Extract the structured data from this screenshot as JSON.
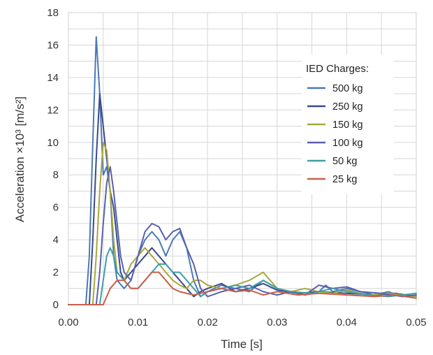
{
  "chart_data": {
    "type": "line",
    "title": "",
    "xlabel": "Time [s]",
    "ylabel": "Acceleration ×10³ [m/s²]",
    "xlim": [
      0,
      0.05
    ],
    "ylim": [
      0,
      18
    ],
    "x_ticks": [
      "0.00",
      "0.01",
      "0.02",
      "0.03",
      "0.04",
      "0.05"
    ],
    "y_ticks": [
      "0",
      "2",
      "4",
      "6",
      "8",
      "10",
      "12",
      "14",
      "16",
      "18"
    ],
    "grid": true,
    "legend": {
      "title": "IED Charges:",
      "position": "right"
    },
    "series": [
      {
        "name": "500 kg",
        "color": "#4a7ab5",
        "points": [
          [
            0,
            0
          ],
          [
            0.0025,
            0
          ],
          [
            0.003,
            3
          ],
          [
            0.0035,
            10
          ],
          [
            0.004,
            16.5
          ],
          [
            0.0045,
            13
          ],
          [
            0.005,
            8
          ],
          [
            0.0055,
            8.5
          ],
          [
            0.006,
            7
          ],
          [
            0.0065,
            3
          ],
          [
            0.007,
            1.5
          ],
          [
            0.008,
            1
          ],
          [
            0.009,
            1.5
          ],
          [
            0.01,
            3
          ],
          [
            0.011,
            4
          ],
          [
            0.012,
            4.5
          ],
          [
            0.013,
            4
          ],
          [
            0.014,
            3
          ],
          [
            0.015,
            4
          ],
          [
            0.016,
            4.5
          ],
          [
            0.017,
            3.5
          ],
          [
            0.018,
            1.5
          ],
          [
            0.019,
            0.5
          ],
          [
            0.02,
            0.8
          ],
          [
            0.022,
            1.2
          ],
          [
            0.024,
            1
          ],
          [
            0.026,
            0.8
          ],
          [
            0.028,
            1.5
          ],
          [
            0.03,
            1
          ],
          [
            0.032,
            0.8
          ],
          [
            0.034,
            0.6
          ],
          [
            0.036,
            0.8
          ],
          [
            0.037,
            1.2
          ],
          [
            0.038,
            0.8
          ],
          [
            0.04,
            1
          ],
          [
            0.042,
            0.8
          ],
          [
            0.044,
            0.6
          ],
          [
            0.046,
            0.8
          ],
          [
            0.048,
            0.5
          ],
          [
            0.05,
            0.6
          ]
        ]
      },
      {
        "name": "250 kg",
        "color": "#3a4a8a",
        "points": [
          [
            0,
            0
          ],
          [
            0.003,
            0
          ],
          [
            0.0035,
            4
          ],
          [
            0.004,
            9
          ],
          [
            0.0045,
            13
          ],
          [
            0.005,
            11
          ],
          [
            0.0055,
            9
          ],
          [
            0.006,
            7
          ],
          [
            0.0065,
            6
          ],
          [
            0.007,
            4
          ],
          [
            0.0075,
            2
          ],
          [
            0.008,
            1.5
          ],
          [
            0.009,
            2
          ],
          [
            0.01,
            2.5
          ],
          [
            0.011,
            3
          ],
          [
            0.012,
            3.5
          ],
          [
            0.013,
            3
          ],
          [
            0.014,
            2.5
          ],
          [
            0.015,
            2
          ],
          [
            0.016,
            1.5
          ],
          [
            0.017,
            1
          ],
          [
            0.018,
            0.5
          ],
          [
            0.019,
            0.8
          ],
          [
            0.02,
            1
          ],
          [
            0.022,
            1.3
          ],
          [
            0.024,
            0.8
          ],
          [
            0.026,
            1
          ],
          [
            0.028,
            1.3
          ],
          [
            0.03,
            0.9
          ],
          [
            0.033,
            0.7
          ],
          [
            0.036,
            0.8
          ],
          [
            0.04,
            0.7
          ],
          [
            0.044,
            0.6
          ],
          [
            0.047,
            0.7
          ],
          [
            0.05,
            0.5
          ]
        ]
      },
      {
        "name": "150 kg",
        "color": "#a6a83c",
        "points": [
          [
            0,
            0
          ],
          [
            0.0035,
            0
          ],
          [
            0.004,
            3
          ],
          [
            0.0045,
            7
          ],
          [
            0.005,
            10
          ],
          [
            0.0055,
            9.5
          ],
          [
            0.006,
            7
          ],
          [
            0.0065,
            4
          ],
          [
            0.007,
            2
          ],
          [
            0.008,
            1.5
          ],
          [
            0.009,
            2.5
          ],
          [
            0.01,
            3
          ],
          [
            0.011,
            3.5
          ],
          [
            0.012,
            3
          ],
          [
            0.013,
            2.5
          ],
          [
            0.014,
            2
          ],
          [
            0.015,
            1.5
          ],
          [
            0.016,
            1.2
          ],
          [
            0.017,
            1
          ],
          [
            0.018,
            1.5
          ],
          [
            0.019,
            1.5
          ],
          [
            0.02,
            1.2
          ],
          [
            0.022,
            1
          ],
          [
            0.024,
            1.2
          ],
          [
            0.026,
            1.5
          ],
          [
            0.028,
            2
          ],
          [
            0.03,
            1
          ],
          [
            0.032,
            0.8
          ],
          [
            0.034,
            1
          ],
          [
            0.036,
            0.8
          ],
          [
            0.038,
            0.7
          ],
          [
            0.04,
            0.9
          ],
          [
            0.043,
            0.6
          ],
          [
            0.046,
            0.7
          ],
          [
            0.05,
            0.5
          ]
        ]
      },
      {
        "name": "100 kg",
        "color": "#5a5fb0",
        "points": [
          [
            0,
            0
          ],
          [
            0.004,
            0
          ],
          [
            0.0045,
            2
          ],
          [
            0.005,
            5
          ],
          [
            0.0055,
            7.5
          ],
          [
            0.006,
            8.5
          ],
          [
            0.0065,
            7
          ],
          [
            0.007,
            5
          ],
          [
            0.0075,
            3
          ],
          [
            0.008,
            2
          ],
          [
            0.009,
            1.5
          ],
          [
            0.01,
            3
          ],
          [
            0.011,
            4.5
          ],
          [
            0.012,
            5
          ],
          [
            0.013,
            4.8
          ],
          [
            0.014,
            4
          ],
          [
            0.015,
            4.5
          ],
          [
            0.016,
            4.7
          ],
          [
            0.017,
            3.5
          ],
          [
            0.018,
            2.5
          ],
          [
            0.019,
            1
          ],
          [
            0.02,
            0.5
          ],
          [
            0.022,
            0.8
          ],
          [
            0.024,
            1
          ],
          [
            0.026,
            1.2
          ],
          [
            0.028,
            0.8
          ],
          [
            0.03,
            0.6
          ],
          [
            0.032,
            0.8
          ],
          [
            0.034,
            0.6
          ],
          [
            0.036,
            1.2
          ],
          [
            0.038,
            1
          ],
          [
            0.04,
            1.1
          ],
          [
            0.042,
            0.8
          ],
          [
            0.045,
            0.7
          ],
          [
            0.048,
            0.5
          ],
          [
            0.05,
            0.6
          ]
        ]
      },
      {
        "name": "50 kg",
        "color": "#3f9ea8",
        "points": [
          [
            0,
            0
          ],
          [
            0.0045,
            0
          ],
          [
            0.005,
            1.5
          ],
          [
            0.0055,
            3
          ],
          [
            0.006,
            3.5
          ],
          [
            0.0065,
            3
          ],
          [
            0.007,
            2
          ],
          [
            0.008,
            1.5
          ],
          [
            0.009,
            1
          ],
          [
            0.01,
            1
          ],
          [
            0.011,
            1.5
          ],
          [
            0.012,
            2
          ],
          [
            0.013,
            2.5
          ],
          [
            0.014,
            2.5
          ],
          [
            0.015,
            2
          ],
          [
            0.016,
            2
          ],
          [
            0.017,
            1.5
          ],
          [
            0.018,
            1
          ],
          [
            0.019,
            0.5
          ],
          [
            0.02,
            0.8
          ],
          [
            0.022,
            1
          ],
          [
            0.024,
            1.2
          ],
          [
            0.026,
            1
          ],
          [
            0.028,
            1.5
          ],
          [
            0.03,
            1
          ],
          [
            0.032,
            0.8
          ],
          [
            0.035,
            0.7
          ],
          [
            0.038,
            1
          ],
          [
            0.04,
            0.8
          ],
          [
            0.043,
            0.6
          ],
          [
            0.046,
            0.5
          ],
          [
            0.05,
            0.7
          ]
        ]
      },
      {
        "name": "25 kg",
        "color": "#c9604a",
        "points": [
          [
            0,
            0
          ],
          [
            0.005,
            0
          ],
          [
            0.0055,
            0.5
          ],
          [
            0.006,
            1
          ],
          [
            0.007,
            1.5
          ],
          [
            0.008,
            1.5
          ],
          [
            0.009,
            1
          ],
          [
            0.01,
            1
          ],
          [
            0.011,
            1.5
          ],
          [
            0.012,
            2
          ],
          [
            0.013,
            2
          ],
          [
            0.014,
            1.5
          ],
          [
            0.015,
            1
          ],
          [
            0.016,
            0.8
          ],
          [
            0.018,
            0.6
          ],
          [
            0.02,
            0.8
          ],
          [
            0.022,
            1
          ],
          [
            0.024,
            0.8
          ],
          [
            0.026,
            0.9
          ],
          [
            0.028,
            0.6
          ],
          [
            0.03,
            0.8
          ],
          [
            0.033,
            0.6
          ],
          [
            0.036,
            0.7
          ],
          [
            0.04,
            0.6
          ],
          [
            0.044,
            0.5
          ],
          [
            0.047,
            0.6
          ],
          [
            0.05,
            0.4
          ]
        ]
      }
    ]
  }
}
